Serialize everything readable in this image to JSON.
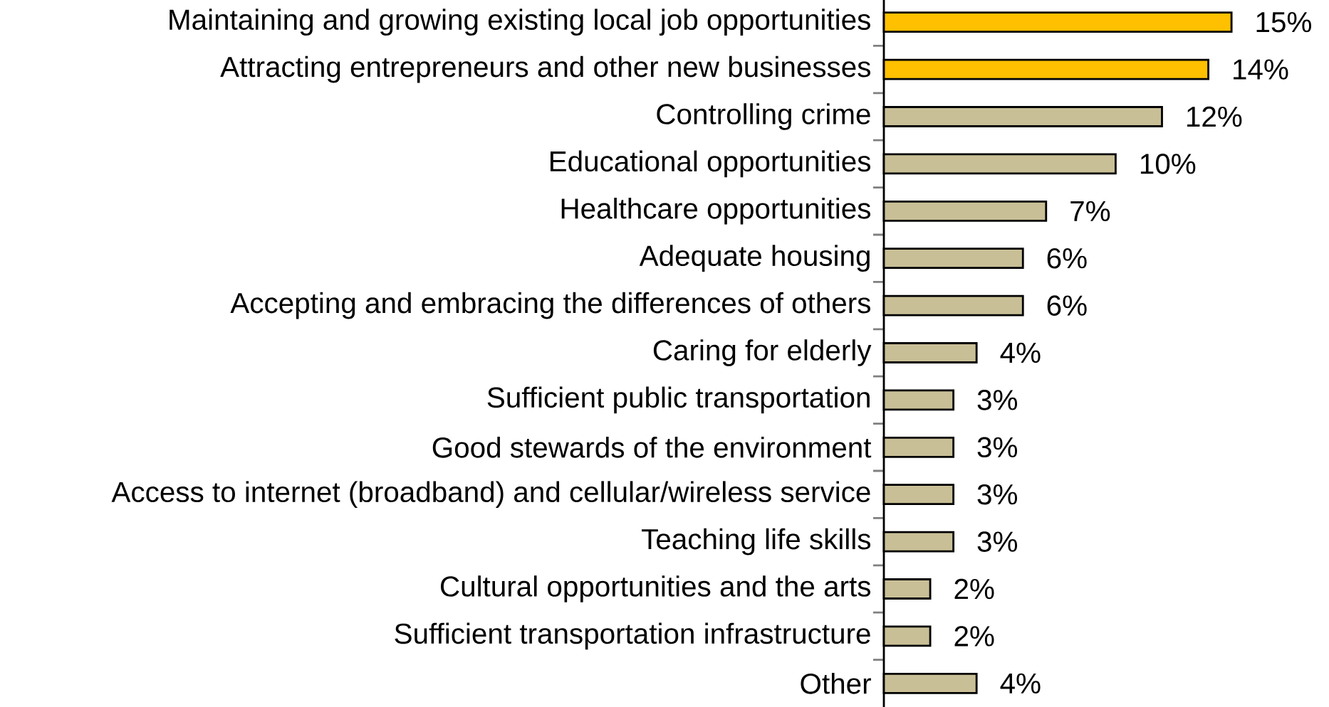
{
  "chart_data": {
    "type": "bar",
    "orientation": "horizontal",
    "categories": [
      "Maintaining and growing existing local job opportunities",
      "Attracting entrepreneurs and other new businesses",
      "Controlling crime",
      "Educational opportunities",
      "Healthcare opportunities",
      "Adequate housing",
      "Accepting and embracing the differences of others",
      "Caring for elderly",
      "Sufficient public transportation",
      "Good stewards of the environment",
      "Access to internet (broadband) and cellular/wireless service",
      "Teaching life skills",
      "Cultural opportunities and the arts",
      "Sufficient transportation infrastructure",
      "Other"
    ],
    "values": [
      15,
      14,
      12,
      10,
      7,
      6,
      6,
      4,
      3,
      3,
      3,
      3,
      2,
      2,
      4
    ],
    "value_labels": [
      "15%",
      "14%",
      "12%",
      "10%",
      "7%",
      "6%",
      "6%",
      "4%",
      "3%",
      "3%",
      "3%",
      "3%",
      "2%",
      "2%",
      "4%"
    ],
    "colors": [
      "#ffc000",
      "#ffc000",
      "#c9bf96",
      "#c9bf96",
      "#c9bf96",
      "#c9bf96",
      "#c9bf96",
      "#c9bf96",
      "#c9bf96",
      "#c9bf96",
      "#c9bf96",
      "#c9bf96",
      "#c9bf96",
      "#c9bf96",
      "#c9bf96"
    ]
  }
}
